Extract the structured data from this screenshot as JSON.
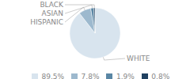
{
  "chart_data": {
    "type": "pie",
    "categories": [
      "WHITE",
      "HISPANIC",
      "ASIAN",
      "BLACK"
    ],
    "values": [
      89.5,
      7.8,
      1.9,
      0.8
    ],
    "value_labels": [
      "89.5%",
      "7.8%",
      "1.9%",
      "0.8%"
    ],
    "colors": [
      "#d8e4ee",
      "#9db9ce",
      "#5a86a4",
      "#1f4060"
    ],
    "legend": "bottom"
  }
}
